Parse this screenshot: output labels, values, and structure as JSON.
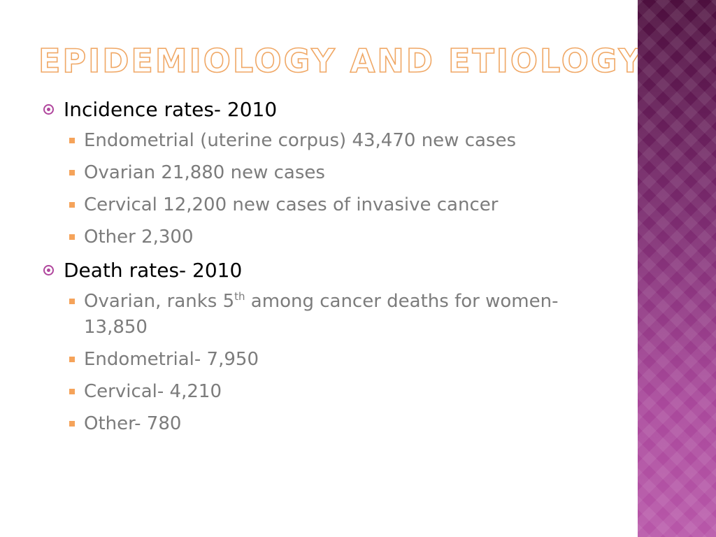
{
  "slide": {
    "title": "Epidemiology and Etiology",
    "sections": [
      {
        "heading": "Incidence rates- 2010",
        "items": [
          {
            "text": "Endometrial (uterine corpus) 43,470 new cases"
          },
          {
            "text": "Ovarian 21,880 new cases"
          },
          {
            "text": "Cervical 12,200 new cases of invasive cancer"
          },
          {
            "text": "Other 2,300"
          }
        ]
      },
      {
        "heading": "Death rates- 2010",
        "items": [
          {
            "text_pre": "Ovarian, ranks 5",
            "sup": "th",
            "text_post": " among cancer deaths for women- 13,850"
          },
          {
            "text": "Endometrial- 7,950"
          },
          {
            "text": "Cervical- 4,210"
          },
          {
            "text": "Other- 780"
          }
        ]
      }
    ]
  },
  "colors": {
    "title_outline": "#f0a866",
    "level1_bullet": "#b0469d",
    "level2_bullet": "#f5a35a",
    "sidebar": "#8a3580"
  }
}
